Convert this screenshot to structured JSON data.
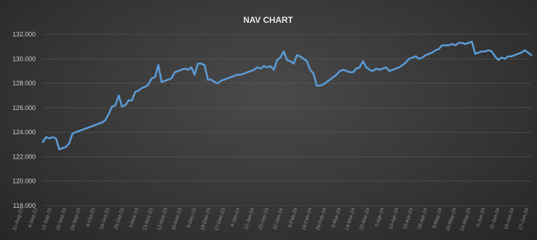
{
  "chart_data": {
    "type": "line",
    "title": "NAV CHART",
    "xlabel": "",
    "ylabel": "",
    "ylim": [
      118,
      132
    ],
    "yticks": [
      "118.000",
      "120.000",
      "122.000",
      "124.000",
      "126.000",
      "128.000",
      "130.000",
      "132.000"
    ],
    "grid": true,
    "legend": "none",
    "line_color": "#5b9bd5",
    "x_tick_labels": [
      "31-Aug-23",
      "4-Sep-23",
      "12-Sep-23",
      "20-Sep-23",
      "28-Sep-23",
      "6-Oct-23",
      "16-Oct-23",
      "25-Oct-23",
      "3-Nov-23",
      "13-Nov-23",
      "22-Nov-23",
      "30-Nov-23",
      "8-Dec-23",
      "18-Dec-23",
      "27-Dec-23",
      "4-Jan-24",
      "12-Jan-24",
      "22-Jan-24",
      "31-Jan-24",
      "8-Feb-24",
      "16-Feb-24",
      "26-Feb-24",
      "5-Mar-24",
      "14-Mar-24",
      "22-Mar-24",
      "2-Apr-24",
      "10-Apr-24",
      "19-Apr-24",
      "29-Apr-24",
      "8-May-24",
      "16-May-24",
      "24-May-24",
      "3-Jun-24",
      "11-Jun-24",
      "19-Jun-24",
      "27-Jun-24"
    ],
    "series": [
      {
        "name": "",
        "values": [
          123.2,
          123.6,
          123.5,
          123.6,
          123.5,
          122.6,
          122.7,
          122.8,
          123.1,
          123.9,
          124.0,
          124.1,
          124.2,
          124.3,
          124.4,
          124.5,
          124.6,
          124.7,
          124.8,
          125.0,
          125.5,
          126.1,
          126.2,
          127.0,
          126.1,
          126.2,
          126.6,
          126.6,
          127.3,
          127.4,
          127.6,
          127.7,
          127.9,
          128.4,
          128.5,
          129.5,
          128.1,
          128.2,
          128.3,
          128.4,
          128.9,
          129.0,
          129.1,
          129.2,
          129.1,
          129.3,
          128.7,
          129.6,
          129.6,
          129.5,
          128.3,
          128.3,
          128.1,
          128.0,
          128.2,
          128.3,
          128.4,
          128.5,
          128.6,
          128.7,
          128.7,
          128.8,
          128.9,
          129.0,
          129.1,
          129.3,
          129.2,
          129.4,
          129.3,
          129.4,
          129.1,
          129.9,
          130.1,
          130.6,
          129.9,
          129.8,
          129.6,
          130.3,
          130.2,
          130.0,
          129.8,
          129.1,
          128.8,
          127.8,
          127.8,
          127.9,
          128.1,
          128.3,
          128.5,
          128.7,
          129.0,
          129.1,
          129.0,
          128.9,
          128.9,
          129.2,
          129.3,
          129.8,
          129.3,
          129.1,
          129.0,
          129.2,
          129.1,
          129.2,
          129.3,
          129.0,
          129.1,
          129.2,
          129.3,
          129.5,
          129.7,
          130.0,
          130.1,
          130.2,
          130.0,
          130.1,
          130.3,
          130.4,
          130.5,
          130.7,
          130.8,
          131.1,
          131.1,
          131.1,
          131.2,
          131.1,
          131.3,
          131.3,
          131.2,
          131.3,
          131.4,
          130.4,
          130.5,
          130.6,
          130.6,
          130.7,
          130.6,
          130.2,
          129.9,
          130.1,
          130.0,
          130.2,
          130.2,
          130.3,
          130.4,
          130.5,
          130.7,
          130.5,
          130.3
        ]
      }
    ]
  }
}
